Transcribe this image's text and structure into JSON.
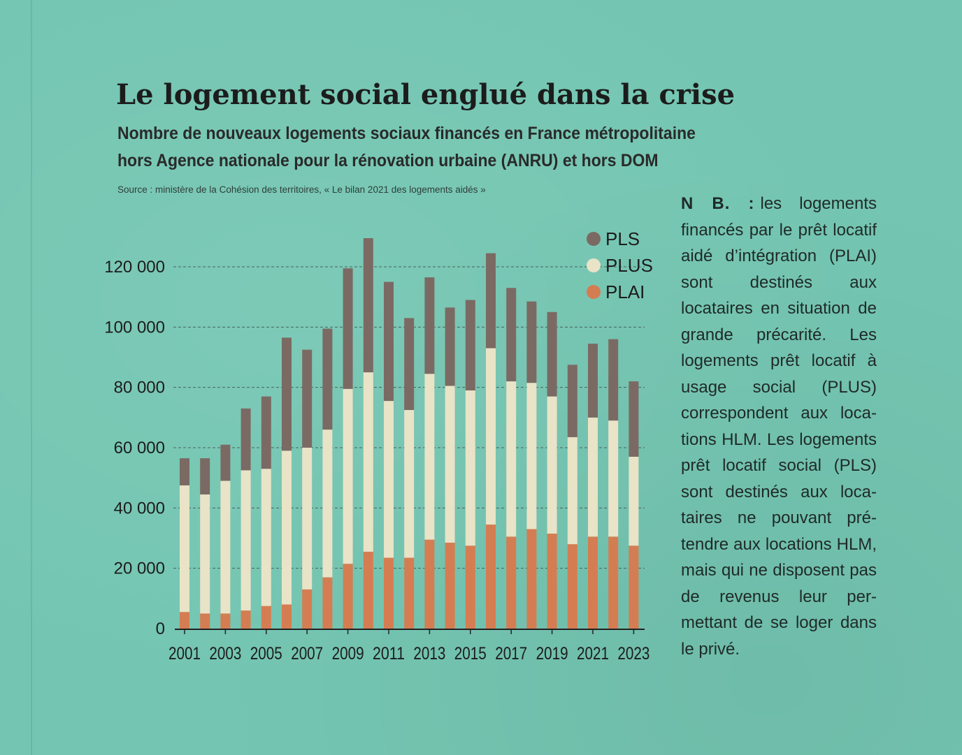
{
  "title": "Le logement social englué dans la crise",
  "subtitle_line1": "Nombre de nouveaux logements sociaux financés en France métropolitaine",
  "subtitle_line2": "hors Agence nationale pour la rénovation urbaine (ANRU) et hors DOM",
  "source": "Source : ministère de la Cohésion des territoires, « Le bilan 2021 des logements aidés »",
  "note": {
    "label": "N B. :",
    "text": "les logements financés par le prêt locatif aidé d’intégra­tion (PLAI) sont destinés aux locataires en situa­tion de grande précarité. Les logements prêt loca­tif à usage social (PLUS) correspondent aux loca­tions HLM. Les logements prêt locatif social (PLS) sont destinés aux loca­taires ne pouvant pré­tendre aux locations HLM, mais qui ne disposent pas de revenus leur per­mettant de se loger dans le privé."
  },
  "colors": {
    "PLS": "#7b6a63",
    "PLUS": "#e9e3c7",
    "PLAI": "#d57d52",
    "gridline": "#3c4a46",
    "axis_text": "#1c1c1c"
  },
  "chart_data": {
    "type": "bar",
    "stacked": true,
    "title": "Le logement social englué dans la crise",
    "xlabel": "",
    "ylabel": "",
    "ylim": [
      0,
      130000
    ],
    "y_ticks": [
      0,
      20000,
      40000,
      60000,
      80000,
      100000,
      120000
    ],
    "y_tick_labels": [
      "0",
      "20 000",
      "40 000",
      "60 000",
      "80 000",
      "100 000",
      "120 000"
    ],
    "categories": [
      "2001",
      "2002",
      "2003",
      "2004",
      "2005",
      "2006",
      "2007",
      "2008",
      "2009",
      "2010",
      "2011",
      "2012",
      "2013",
      "2014",
      "2015",
      "2016",
      "2017",
      "2018",
      "2019",
      "2020",
      "2021",
      "2022",
      "2023"
    ],
    "x_tick_labels": [
      "2001",
      "2003",
      "2005",
      "2007",
      "2009",
      "2011",
      "2013",
      "2015",
      "2017",
      "2019",
      "2021",
      "2023"
    ],
    "legend": [
      "PLS",
      "PLUS",
      "PLAI"
    ],
    "legend_position": "top-right",
    "series": [
      {
        "name": "PLAI",
        "values": [
          5500,
          5000,
          5000,
          6000,
          7500,
          8000,
          13000,
          17000,
          21500,
          25500,
          23500,
          23500,
          29500,
          28500,
          27500,
          34500,
          30500,
          33000,
          31500,
          28000,
          30500,
          30500,
          27500
        ]
      },
      {
        "name": "PLUS",
        "values": [
          42000,
          39500,
          44000,
          46500,
          45500,
          51000,
          47000,
          49000,
          58000,
          59500,
          52000,
          49000,
          55000,
          52000,
          51500,
          58500,
          51500,
          48500,
          45500,
          35500,
          39500,
          38500,
          29500
        ]
      },
      {
        "name": "PLS",
        "values": [
          9000,
          12000,
          12000,
          20500,
          24000,
          37500,
          32500,
          33500,
          40000,
          44500,
          39500,
          30500,
          32000,
          26000,
          30000,
          31500,
          31000,
          27000,
          28000,
          24000,
          24500,
          27000,
          25000
        ]
      }
    ]
  }
}
